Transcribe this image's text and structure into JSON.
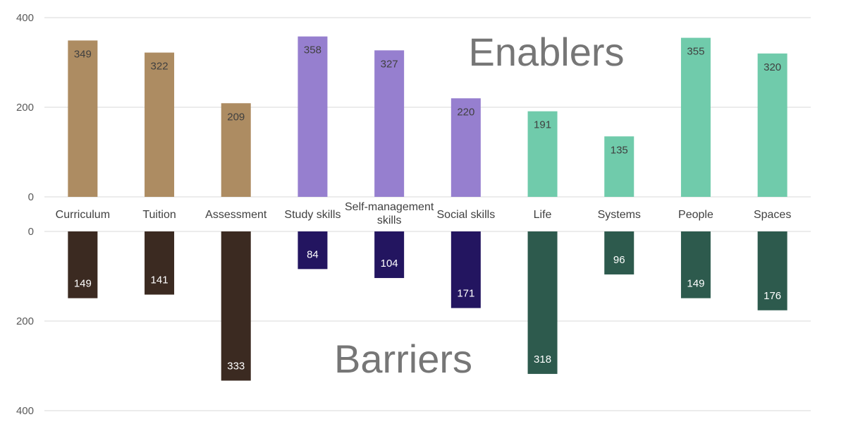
{
  "chart_data": {
    "type": "bar",
    "categories": [
      "Curriculum",
      "Tuition",
      "Assessment",
      "Study skills",
      "Self-management skills",
      "Social skills",
      "Life",
      "Systems",
      "People",
      "Spaces"
    ],
    "category_lines": [
      [
        "Curriculum"
      ],
      [
        "Tuition"
      ],
      [
        "Assessment"
      ],
      [
        "Study skills"
      ],
      [
        "Self-management",
        "skills"
      ],
      [
        "Social skills"
      ],
      [
        "Life"
      ],
      [
        "Systems"
      ],
      [
        "People"
      ],
      [
        "Spaces"
      ]
    ],
    "series": [
      {
        "name": "Enablers",
        "values": [
          349,
          322,
          209,
          358,
          327,
          220,
          191,
          135,
          355,
          320
        ],
        "colors": [
          "#ad8c62",
          "#ad8c62",
          "#ad8c62",
          "#967fcf",
          "#967fcf",
          "#967fcf",
          "#70cbab",
          "#70cbab",
          "#70cbab",
          "#70cbab"
        ],
        "ylim": [
          0,
          400
        ],
        "ticks": [
          "0",
          "200",
          "400"
        ]
      },
      {
        "name": "Barriers",
        "values": [
          149,
          141,
          333,
          84,
          104,
          171,
          318,
          96,
          149,
          176
        ],
        "colors": [
          "#3b2a21",
          "#3b2a21",
          "#3b2a21",
          "#231560",
          "#231560",
          "#231560",
          "#2d5a4d",
          "#2d5a4d",
          "#2d5a4d",
          "#2d5a4d"
        ],
        "ylim": [
          0,
          400
        ],
        "ticks": [
          "0",
          "200",
          "400"
        ]
      }
    ],
    "title": "",
    "xlabel": "",
    "ylabel": ""
  }
}
